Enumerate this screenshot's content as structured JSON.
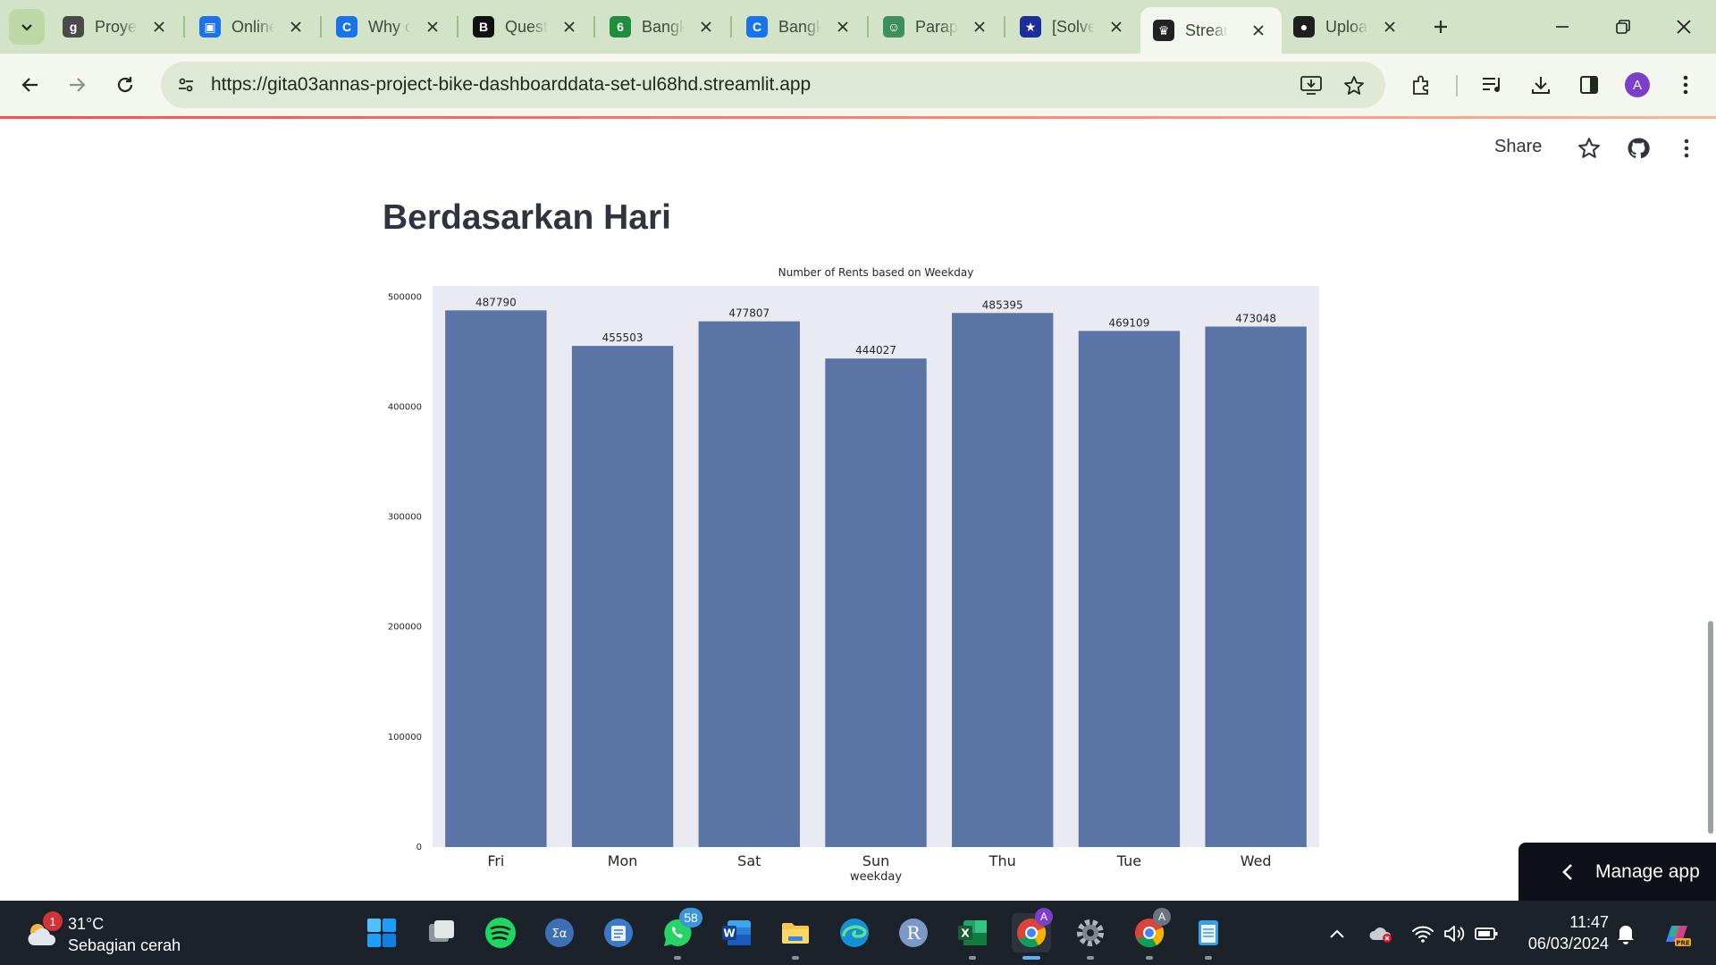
{
  "browser": {
    "tabs": [
      {
        "title": "Proyek",
        "favicon_color": "#4a4a4a",
        "favicon_glyph": "g",
        "icon": "g-icon"
      },
      {
        "title": "Online",
        "favicon_color": "#1a73e8",
        "favicon_glyph": "▣",
        "icon": "classroom-icon"
      },
      {
        "title": "Why c",
        "favicon_color": "#1a73e8",
        "favicon_glyph": "C",
        "icon": "c-icon"
      },
      {
        "title": "Quest",
        "favicon_color": "#111111",
        "favicon_glyph": "B",
        "icon": "brainly-icon"
      },
      {
        "title": "Bangk",
        "favicon_color": "#1e8e3e",
        "favicon_glyph": "6",
        "icon": "calendar-icon"
      },
      {
        "title": "Bangk",
        "favicon_color": "#1a73e8",
        "favicon_glyph": "C",
        "icon": "c-icon"
      },
      {
        "title": "Parap",
        "favicon_color": "#3f8f5a",
        "favicon_glyph": "☺",
        "icon": "robot-icon"
      },
      {
        "title": "[Solve",
        "favicon_color": "#1c2e9c",
        "favicon_glyph": "★",
        "icon": "star-badge-icon"
      },
      {
        "title": "Strean",
        "favicon_color": "#222222",
        "favicon_glyph": "♛",
        "icon": "streamlit-icon",
        "active": true
      },
      {
        "title": "Uploa",
        "favicon_color": "#1f1f1f",
        "favicon_glyph": "●",
        "icon": "github-icon"
      }
    ],
    "url": "https://gita03annas-project-bike-dashboarddata-set-ul68hd.streamlit.app",
    "profile_initial": "A"
  },
  "streamlit": {
    "share_label": "Share",
    "page_title": "Berdasarkan Hari",
    "manage_app_label": "Manage app"
  },
  "chart_data": {
    "type": "bar",
    "title": "Number of Rents based on Weekday",
    "xlabel": "weekday",
    "ylabel": "",
    "categories": [
      "Fri",
      "Mon",
      "Sat",
      "Sun",
      "Thu",
      "Tue",
      "Wed"
    ],
    "values": [
      487790,
      455503,
      477807,
      444027,
      485395,
      469109,
      473048
    ],
    "data_labels": [
      "487790",
      "455503",
      "477807",
      "444027",
      "485395",
      "469109",
      "473048"
    ],
    "yticks": [
      0,
      100000,
      200000,
      300000,
      400000,
      500000
    ],
    "ytick_labels": [
      "0",
      "100000",
      "200000",
      "300000",
      "400000",
      "500000"
    ],
    "ylim": [
      0,
      510000
    ],
    "bar_color": "#5a74a5",
    "plot_bg": "#eaeaf2",
    "grid": false
  },
  "taskbar": {
    "weather_temp": "31°C",
    "weather_desc": "Sebagian cerah",
    "weather_badge": "1",
    "whatsapp_badge": "58",
    "clock_time": "11:47",
    "clock_date": "06/03/2024"
  }
}
